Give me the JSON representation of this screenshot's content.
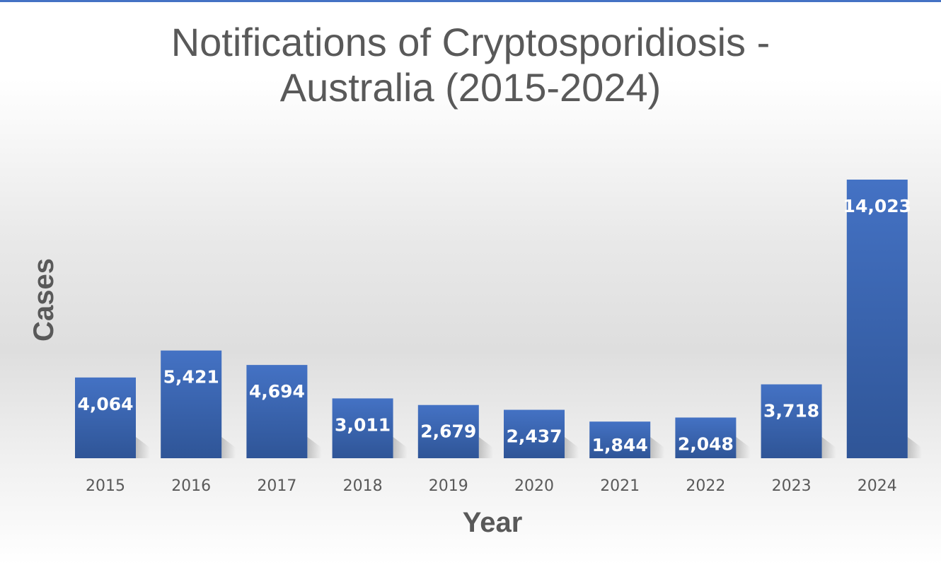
{
  "chart_data": {
    "type": "bar",
    "title_line1": "Notifications of Cryptosporidiosis -",
    "title_line2": "Australia (2015-2024)",
    "xlabel": "Year",
    "ylabel": "Cases",
    "categories": [
      "2015",
      "2016",
      "2017",
      "2018",
      "2019",
      "2020",
      "2021",
      "2022",
      "2023",
      "2024"
    ],
    "values": [
      4064,
      5421,
      4694,
      3011,
      2679,
      2437,
      1844,
      2048,
      3718,
      14023
    ],
    "value_labels": [
      "4,064",
      "5,421",
      "4,694",
      "3,011",
      "2,679",
      "2,437",
      "1,844",
      "2,048",
      "3,718",
      "14,023"
    ],
    "ylim": [
      0,
      14023
    ],
    "grid": false,
    "legend": "none",
    "bar_color_top": "#4472c4",
    "bar_color_bottom": "#2f5597",
    "accent_rule_color": "#4472c4"
  }
}
